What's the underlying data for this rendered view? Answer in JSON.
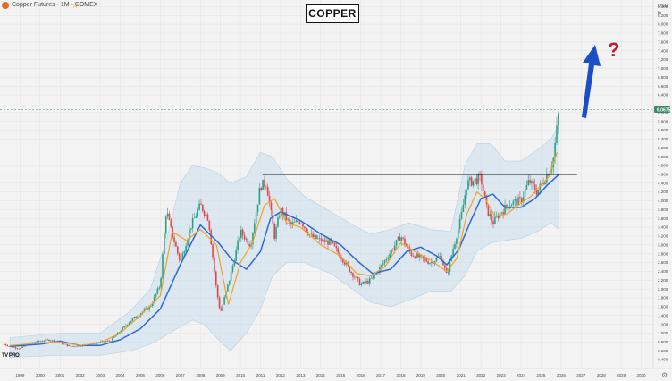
{
  "header": {
    "symbol_label": "Copper Futures · 1M · COMEX",
    "title": "COPPER",
    "axis_currency": "USD",
    "axis_unit": "lb"
  },
  "annotation": {
    "question_mark": "?",
    "arrow_color": "#1a4fc8",
    "resistance_level": 4.6,
    "resistance_from": 2011.1,
    "resistance_to": 2026.8
  },
  "current_price": {
    "label": "6.0675",
    "value": 6.0675,
    "color": "#3d8a64"
  },
  "branding": {
    "logo_text": "TV PRO"
  },
  "colors": {
    "up_candle": "#2e9e82",
    "down_candle": "#e0454a",
    "sma_fast": "#f4a020",
    "sma_slow": "#2a6ad8",
    "band_fill": "#c8dcec"
  },
  "chart_data": {
    "type": "line",
    "title": "COPPER",
    "xlabel": "",
    "ylabel": "",
    "grid": true,
    "xlim": [
      1998.0,
      2030.6
    ],
    "ylim": [
      0.2,
      8.55
    ],
    "x_ticks": [
      1999,
      2000,
      2001,
      2002,
      2003,
      2004,
      2005,
      2006,
      2007,
      2008,
      2009,
      2010,
      2011,
      2012,
      2013,
      2014,
      2015,
      2016,
      2017,
      2018,
      2019,
      2020,
      2021,
      2022,
      2023,
      2024,
      2025,
      2026,
      2027,
      2028,
      2029,
      2030
    ],
    "y_ticks": [
      "0.400",
      "0.600",
      "0.800",
      "1.000",
      "1.200",
      "1.400",
      "1.600",
      "1.800",
      "2.000",
      "2.200",
      "2.400",
      "2.600",
      "2.800",
      "3.000",
      "3.200",
      "3.400",
      "3.600",
      "3.800",
      "4.000",
      "4.200",
      "4.400",
      "4.600",
      "4.800",
      "5.000",
      "5.200",
      "5.400",
      "5.600",
      "5.800",
      "6.000",
      "6.400",
      "6.600",
      "6.800",
      "7.000",
      "7.200",
      "7.400",
      "7.600",
      "7.800",
      "8.000",
      "8.200",
      "8.400"
    ],
    "price_x": [
      1998.2,
      1998.5,
      1999.0,
      1999.5,
      2000.0,
      2000.5,
      2001.0,
      2001.5,
      2002.0,
      2002.5,
      2003.0,
      2003.5,
      2004.0,
      2004.5,
      2005.0,
      2005.5,
      2006.0,
      2006.3,
      2006.5,
      2007.0,
      2007.5,
      2008.0,
      2008.4,
      2008.8,
      2009.0,
      2009.5,
      2010.0,
      2010.5,
      2011.0,
      2011.3,
      2011.7,
      2012.0,
      2012.5,
      2013.0,
      2013.5,
      2014.0,
      2014.5,
      2015.0,
      2015.5,
      2016.0,
      2016.5,
      2017.0,
      2017.5,
      2018.0,
      2018.5,
      2019.0,
      2019.5,
      2020.0,
      2020.3,
      2020.6,
      2021.0,
      2021.3,
      2021.6,
      2022.0,
      2022.3,
      2022.6,
      2023.0,
      2023.5,
      2024.0,
      2024.4,
      2024.8,
      2025.0,
      2025.3,
      2025.6,
      2025.9
    ],
    "price_values": [
      0.75,
      0.7,
      0.65,
      0.78,
      0.82,
      0.85,
      0.78,
      0.7,
      0.72,
      0.75,
      0.8,
      0.82,
      1.05,
      1.28,
      1.45,
      1.6,
      2.1,
      3.8,
      3.4,
      2.6,
      3.4,
      3.9,
      3.6,
      2.0,
      1.45,
      2.3,
      3.3,
      3.0,
      4.35,
      4.4,
      3.2,
      3.8,
      3.45,
      3.55,
      3.2,
      3.1,
      3.05,
      2.75,
      2.4,
      2.1,
      2.2,
      2.5,
      2.85,
      3.2,
      2.8,
      2.7,
      2.6,
      2.75,
      2.3,
      2.9,
      3.6,
      4.4,
      4.45,
      4.5,
      3.8,
      3.5,
      3.75,
      3.95,
      4.0,
      4.45,
      4.2,
      4.35,
      4.6,
      4.9,
      6.0675
    ],
    "series": [
      {
        "name": "SMA fast",
        "x": [
          1998.5,
          2000.0,
          2001.0,
          2002.0,
          2003.0,
          2004.0,
          2005.0,
          2006.0,
          2006.6,
          2007.3,
          2008.0,
          2008.8,
          2009.4,
          2010.0,
          2010.6,
          2011.2,
          2011.7,
          2012.3,
          2013.0,
          2014.0,
          2015.0,
          2015.8,
          2016.5,
          2017.2,
          2018.0,
          2018.7,
          2019.5,
          2020.3,
          2020.8,
          2021.3,
          2021.8,
          2022.2,
          2022.7,
          2023.3,
          2024.0,
          2024.5,
          2025.0,
          2025.4,
          2025.8
        ],
        "values": [
          0.72,
          0.78,
          0.8,
          0.72,
          0.78,
          1.0,
          1.4,
          1.85,
          3.3,
          3.1,
          3.35,
          3.0,
          1.65,
          2.6,
          3.05,
          3.9,
          4.05,
          3.5,
          3.4,
          3.0,
          2.75,
          2.35,
          2.3,
          2.5,
          3.05,
          2.85,
          2.65,
          2.4,
          2.7,
          3.7,
          4.2,
          4.05,
          3.65,
          3.7,
          3.95,
          4.1,
          4.35,
          4.55,
          5.1
        ]
      },
      {
        "name": "SMA slow",
        "x": [
          1998.5,
          2000.0,
          2001.0,
          2002.0,
          2003.0,
          2004.0,
          2005.0,
          2006.0,
          2007.0,
          2008.0,
          2008.9,
          2009.6,
          2010.3,
          2011.0,
          2011.5,
          2012.0,
          2013.0,
          2014.0,
          2015.0,
          2015.8,
          2016.6,
          2017.5,
          2018.3,
          2019.0,
          2019.8,
          2020.3,
          2020.9,
          2021.5,
          2022.0,
          2022.6,
          2023.2,
          2024.0,
          2024.7,
          2025.3,
          2025.9
        ],
        "values": [
          0.7,
          0.75,
          0.82,
          0.72,
          0.72,
          0.85,
          1.1,
          1.55,
          2.55,
          3.45,
          3.05,
          2.65,
          2.45,
          2.85,
          3.6,
          3.75,
          3.55,
          3.25,
          3.0,
          2.65,
          2.35,
          2.45,
          2.85,
          2.95,
          2.75,
          2.55,
          2.9,
          3.55,
          4.05,
          4.15,
          3.85,
          3.85,
          4.05,
          4.35,
          4.6
        ]
      },
      {
        "name": "Band upper",
        "x": [
          1998.5,
          2001.0,
          2003.0,
          2004.5,
          2005.5,
          2006.3,
          2007.0,
          2007.6,
          2008.2,
          2008.8,
          2009.5,
          2010.3,
          2011.0,
          2011.6,
          2012.3,
          2013.2,
          2014.5,
          2015.6,
          2016.5,
          2017.5,
          2018.4,
          2019.5,
          2020.5,
          2021.2,
          2021.8,
          2022.5,
          2023.2,
          2024.0,
          2024.8,
          2025.5,
          2025.9
        ],
        "values": [
          0.9,
          1.0,
          1.0,
          1.5,
          2.0,
          3.1,
          4.4,
          4.8,
          4.75,
          4.65,
          4.4,
          4.55,
          5.1,
          5.0,
          4.5,
          4.1,
          3.75,
          3.45,
          3.25,
          3.35,
          3.5,
          3.35,
          3.3,
          4.8,
          5.3,
          5.3,
          4.9,
          4.9,
          5.15,
          5.4,
          5.7
        ]
      },
      {
        "name": "Band lower",
        "x": [
          1998.5,
          2001.0,
          2003.0,
          2004.5,
          2005.5,
          2006.3,
          2007.0,
          2007.6,
          2008.2,
          2008.8,
          2009.5,
          2010.3,
          2011.0,
          2011.6,
          2012.3,
          2013.2,
          2014.5,
          2015.6,
          2016.5,
          2017.5,
          2018.4,
          2019.5,
          2020.5,
          2021.2,
          2021.8,
          2022.5,
          2023.2,
          2024.0,
          2024.8,
          2025.5,
          2025.9
        ],
        "values": [
          0.45,
          0.5,
          0.5,
          0.6,
          0.75,
          0.95,
          1.15,
          1.3,
          1.2,
          0.9,
          0.6,
          1.0,
          1.55,
          2.3,
          2.6,
          2.6,
          2.35,
          2.0,
          1.7,
          1.6,
          1.75,
          1.95,
          1.95,
          2.3,
          2.85,
          3.05,
          3.1,
          3.15,
          3.3,
          3.5,
          3.35
        ]
      }
    ]
  }
}
